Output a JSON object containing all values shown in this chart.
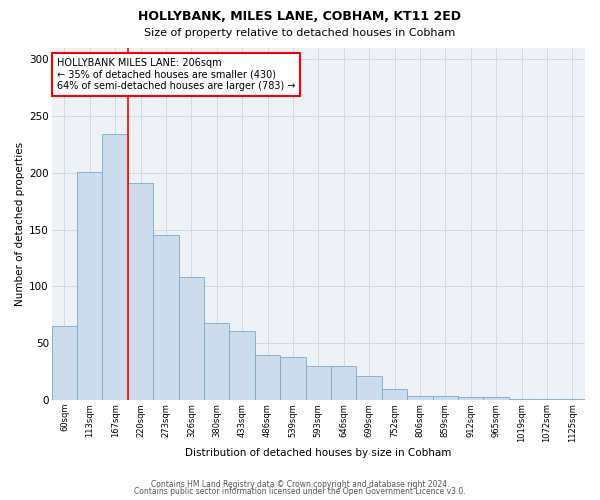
{
  "title": "HOLLYBANK, MILES LANE, COBHAM, KT11 2ED",
  "subtitle": "Size of property relative to detached houses in Cobham",
  "xlabel": "Distribution of detached houses by size in Cobham",
  "ylabel": "Number of detached properties",
  "bar_labels": [
    "60sqm",
    "113sqm",
    "167sqm",
    "220sqm",
    "273sqm",
    "326sqm",
    "380sqm",
    "433sqm",
    "486sqm",
    "539sqm",
    "593sqm",
    "646sqm",
    "699sqm",
    "752sqm",
    "806sqm",
    "859sqm",
    "912sqm",
    "965sqm",
    "1019sqm",
    "1072sqm",
    "1125sqm"
  ],
  "bar_values": [
    65,
    201,
    234,
    191,
    145,
    108,
    68,
    61,
    40,
    38,
    30,
    30,
    21,
    10,
    4,
    4,
    3,
    3,
    1,
    1,
    1
  ],
  "bar_color": "#ccdcec",
  "bar_edge_color": "#7aaac8",
  "grid_color": "#d0d8e0",
  "bg_color": "#eef2f6",
  "red_line_x": 2.5,
  "annotation_title": "HOLLYBANK MILES LANE: 206sqm",
  "annotation_line1": "← 35% of detached houses are smaller (430)",
  "annotation_line2": "64% of semi-detached houses are larger (783) →",
  "ylim": [
    0,
    310
  ],
  "yticks": [
    0,
    50,
    100,
    150,
    200,
    250,
    300
  ],
  "footnote1": "Contains HM Land Registry data © Crown copyright and database right 2024.",
  "footnote2": "Contains public sector information licensed under the Open Government Licence v3.0."
}
